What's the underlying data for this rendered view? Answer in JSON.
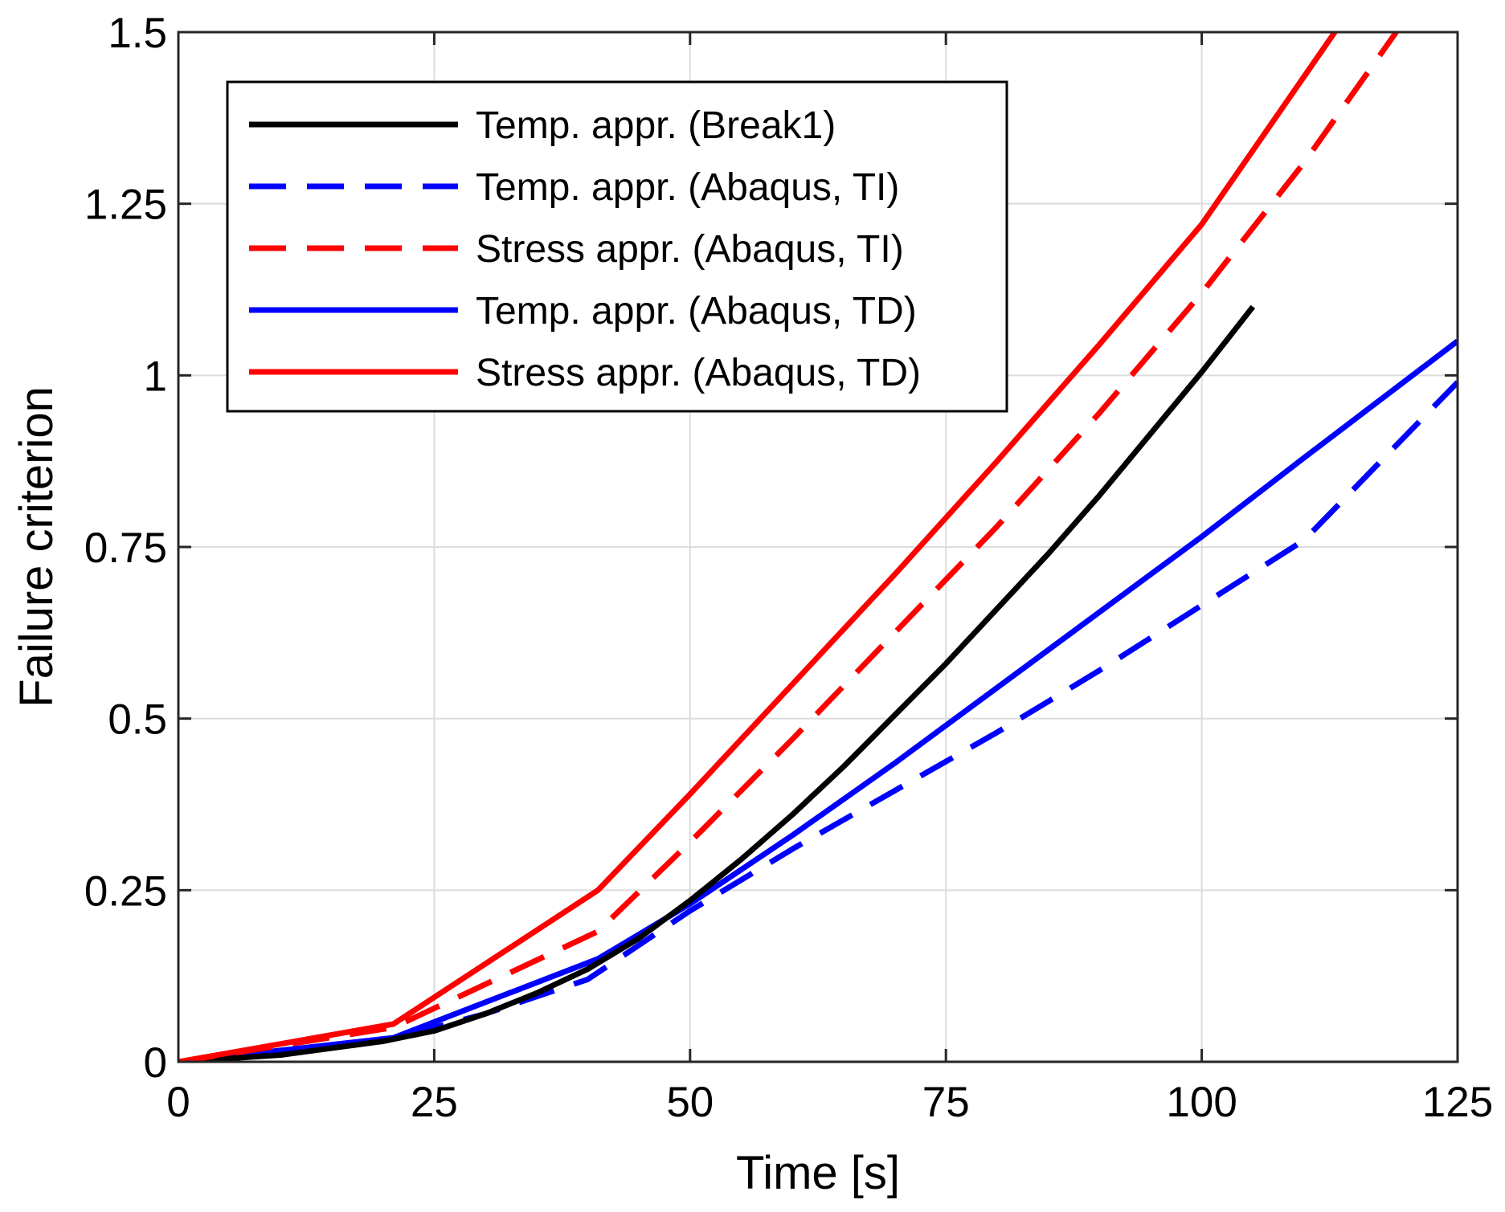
{
  "chart_data": {
    "type": "line",
    "title": "",
    "xlabel": "Time [s]",
    "ylabel": "Failure criterion",
    "xlim": [
      0,
      125
    ],
    "ylim": [
      0,
      1.5
    ],
    "grid": true,
    "legend_position": "top-left",
    "xticks": [
      0,
      25,
      50,
      75,
      100,
      125
    ],
    "xtick_labels": [
      "0",
      "25",
      "50",
      "75",
      "100",
      "125"
    ],
    "yticks": [
      0,
      0.25,
      0.5,
      0.75,
      1,
      1.25,
      1.5
    ],
    "ytick_labels": [
      "0",
      "0.25",
      "0.5",
      "0.75",
      "1",
      "1.25",
      "1.5"
    ],
    "series": [
      {
        "name": "Temp. appr. (Break1)",
        "color": "#000000",
        "dash": "solid",
        "x": [
          0,
          10,
          20,
          25,
          30,
          35,
          40,
          45,
          50,
          55,
          60,
          65,
          70,
          75,
          80,
          85,
          90,
          95,
          100,
          105
        ],
        "y": [
          0,
          0.01,
          0.03,
          0.045,
          0.07,
          0.1,
          0.135,
          0.18,
          0.235,
          0.295,
          0.36,
          0.43,
          0.505,
          0.58,
          0.66,
          0.74,
          0.825,
          0.915,
          1.005,
          1.1
        ]
      },
      {
        "name": "Temp. appr. (Abaqus, TI)",
        "color": "#0000ff",
        "dash": "dashed",
        "x": [
          0,
          20,
          30,
          40,
          50,
          60,
          70,
          80,
          90,
          100,
          110,
          125
        ],
        "y": [
          0,
          0.03,
          0.07,
          0.12,
          0.22,
          0.31,
          0.395,
          0.48,
          0.57,
          0.665,
          0.76,
          0.99
        ]
      },
      {
        "name": "Stress appr. (Abaqus, TI)",
        "color": "#ff0000",
        "dash": "dashed",
        "x": [
          0,
          21,
          41,
          50,
          60,
          70,
          80,
          90,
          100,
          110,
          119
        ],
        "y": [
          0,
          0.05,
          0.19,
          0.32,
          0.47,
          0.625,
          0.78,
          0.945,
          1.12,
          1.31,
          1.5
        ]
      },
      {
        "name": "Temp. appr. (Abaqus, TD)",
        "color": "#0000ff",
        "dash": "solid",
        "x": [
          0,
          21,
          41,
          50,
          60,
          70,
          80,
          90,
          100,
          110,
          125
        ],
        "y": [
          0,
          0.035,
          0.15,
          0.23,
          0.33,
          0.435,
          0.545,
          0.655,
          0.765,
          0.88,
          1.05
        ]
      },
      {
        "name": "Stress appr. (Abaqus, TD)",
        "color": "#ff0000",
        "dash": "solid",
        "x": [
          0,
          21,
          41,
          50,
          60,
          70,
          80,
          90,
          100,
          113
        ],
        "y": [
          0,
          0.055,
          0.25,
          0.39,
          0.55,
          0.71,
          0.875,
          1.045,
          1.22,
          1.5
        ]
      }
    ]
  }
}
